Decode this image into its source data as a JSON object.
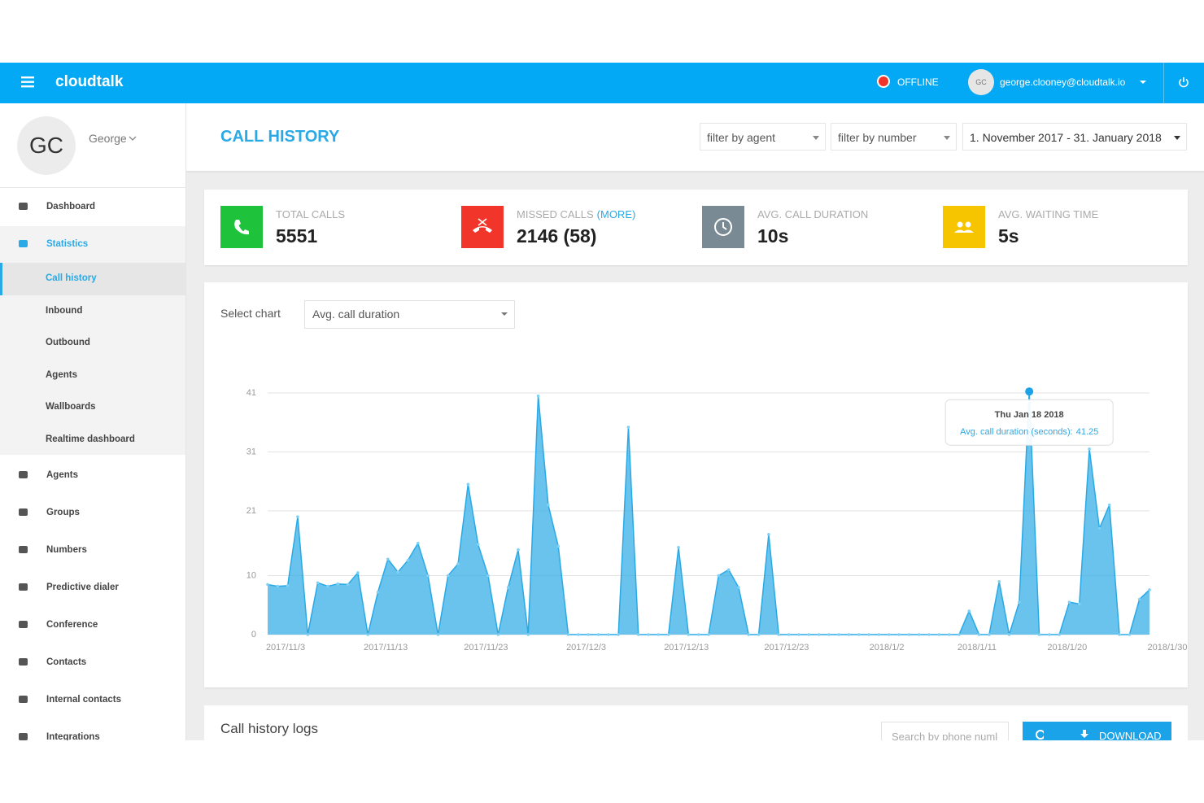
{
  "header": {
    "brand": "cloudtalk",
    "status": "OFFLINE",
    "avatar": "GC",
    "email": "george.clooney@cloudtalk.io"
  },
  "sidebar": {
    "initials": "GC",
    "name": "George",
    "nav": [
      {
        "label": "Dashboard"
      },
      {
        "label": "Statistics",
        "children": [
          "Call history",
          "Inbound",
          "Outbound",
          "Agents",
          "Wallboards",
          "Realtime dashboard"
        ]
      },
      {
        "label": "Agents"
      },
      {
        "label": "Groups"
      },
      {
        "label": "Numbers"
      },
      {
        "label": "Predictive dialer"
      },
      {
        "label": "Conference"
      },
      {
        "label": "Contacts"
      },
      {
        "label": "Internal contacts"
      },
      {
        "label": "Integrations"
      }
    ]
  },
  "page": {
    "title": "CALL HISTORY",
    "filters": [
      "filter by agent",
      "filter by number",
      "1. November 2017 - 31. January 2018"
    ]
  },
  "stats": [
    {
      "label": "TOTAL CALLS",
      "value": 5551,
      "color": "#1fc23b"
    },
    {
      "label": "MISSED CALLS",
      "link": "(MORE)",
      "value": "2146 (58)",
      "color": "#f2352a"
    },
    {
      "label": "AVG. CALL DURATION",
      "value": "10s",
      "color": "#7a8a94"
    },
    {
      "label": "AVG. WAITING TIME",
      "value": "5s",
      "color": "#f7c500"
    }
  ],
  "chart_select": {
    "label": "Select chart",
    "value": "Avg. call duration"
  },
  "chart_data": {
    "type": "area",
    "categories": [
      "2017/11/3",
      null,
      null,
      null,
      null,
      null,
      null,
      null,
      null,
      null,
      "2017/11/13",
      null,
      null,
      null,
      null,
      null,
      null,
      null,
      null,
      null,
      "2017/11/23",
      null,
      null,
      null,
      null,
      null,
      null,
      null,
      null,
      null,
      "2017/12/3",
      null,
      null,
      null,
      null,
      null,
      null,
      null,
      null,
      null,
      "2017/12/13",
      null,
      null,
      null,
      null,
      null,
      null,
      null,
      null,
      null,
      "2017/12/23",
      null,
      null,
      null,
      null,
      null,
      null,
      null,
      null,
      null,
      "2018/1/2",
      null,
      null,
      null,
      null,
      null,
      null,
      null,
      null,
      "2018/1/11",
      null,
      null,
      null,
      null,
      null,
      null,
      null,
      null,
      "2018/1/20",
      null,
      null,
      null,
      null,
      null,
      null,
      null,
      null,
      null,
      "2018/1/30"
    ],
    "values": [
      8.5,
      8.2,
      8.3,
      20,
      0,
      8.8,
      8.2,
      8.6,
      8.5,
      10.5,
      0,
      7.2,
      12.8,
      10.6,
      12.6,
      15.5,
      10,
      0,
      10,
      12,
      25.5,
      15.3,
      10,
      0,
      8,
      14.4,
      0,
      40.5,
      22,
      15,
      0,
      0,
      0,
      0,
      0,
      0,
      35.2,
      0,
      0,
      0,
      0,
      14.8,
      0,
      0,
      0,
      10,
      11,
      8,
      0,
      0,
      17,
      0,
      0,
      0,
      0,
      0,
      0,
      0,
      0,
      0,
      0,
      0,
      0,
      0,
      0,
      0,
      0,
      0,
      0,
      0,
      4,
      0,
      0,
      9,
      0,
      5.5,
      41.25,
      0,
      0,
      0,
      5.5,
      5.2,
      31.5,
      18,
      22,
      0,
      0,
      6,
      7.6
    ],
    "color": "#29a9e6",
    "ylim": [
      0,
      41
    ],
    "yticks": [
      0,
      10,
      21,
      31,
      41
    ],
    "grid": true,
    "tooltip": {
      "title": "Thu Jan 18 2018",
      "label": "Avg. call duration (seconds):"
    }
  },
  "logs": {
    "title": "Call history logs",
    "search_placeholder": "Search by phone numl",
    "download": "DOWNLOAD"
  }
}
